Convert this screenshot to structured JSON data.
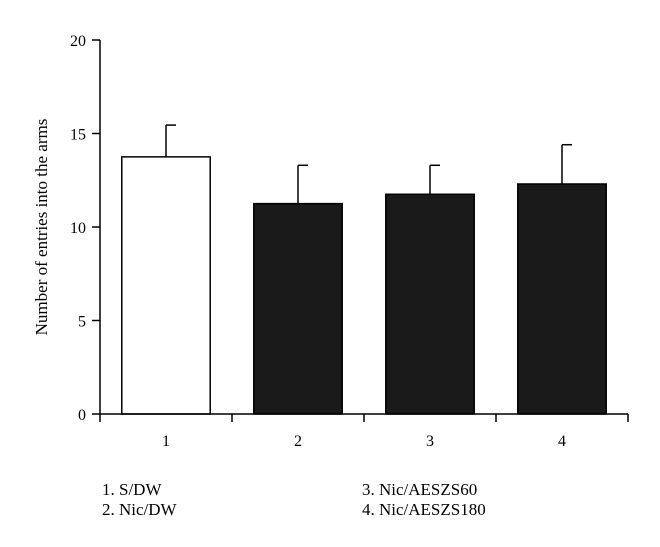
{
  "chart_data": {
    "type": "bar",
    "categories": [
      "1",
      "2",
      "3",
      "4"
    ],
    "values": [
      13.75,
      11.25,
      11.75,
      12.3
    ],
    "errors": [
      1.7,
      2.05,
      1.55,
      2.1
    ],
    "bar_colors": [
      "#ffffff",
      "#1a1a1a",
      "#1a1a1a",
      "#1a1a1a"
    ],
    "xlabel": "",
    "ylabel": "Number of entries into the arms",
    "ylim": [
      0,
      20
    ],
    "yticks": [
      0,
      5,
      10,
      15,
      20
    ],
    "grid": false
  },
  "legend": {
    "items": [
      "1. S/DW",
      "2. Nic/DW",
      "3. Nic/AESZS60",
      "4. Nic/AESZS180"
    ]
  }
}
